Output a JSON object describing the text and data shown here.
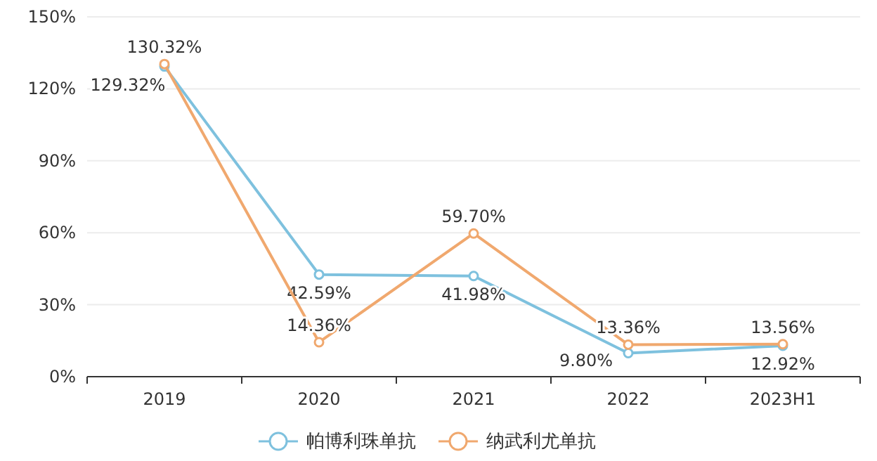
{
  "chart_data": {
    "type": "line",
    "categories": [
      "2019",
      "2020",
      "2021",
      "2022",
      "2023H1"
    ],
    "series": [
      {
        "name": "帕博利珠单抗",
        "color": "#7ec1de",
        "values": [
          129.32,
          42.59,
          41.98,
          9.8,
          12.92
        ],
        "value_labels": [
          "129.32%",
          "42.59%",
          "41.98%",
          "9.80%",
          "12.92%"
        ]
      },
      {
        "name": "纳武利尤单抗",
        "color": "#f0a86e",
        "values": [
          130.32,
          14.36,
          59.7,
          13.36,
          13.56
        ],
        "value_labels": [
          "130.32%",
          "14.36%",
          "59.70%",
          "13.36%",
          "13.56%"
        ]
      }
    ],
    "ylim": [
      0,
      150
    ],
    "yticks": [
      {
        "value": 0,
        "label": "0%"
      },
      {
        "value": 30,
        "label": "30%"
      },
      {
        "value": 60,
        "label": "60%"
      },
      {
        "value": 90,
        "label": "90%"
      },
      {
        "value": 120,
        "label": "120%"
      },
      {
        "value": 150,
        "label": "150%"
      }
    ],
    "grid": "y",
    "legend": "bottom",
    "marker": "circle",
    "line_style": "solid"
  }
}
